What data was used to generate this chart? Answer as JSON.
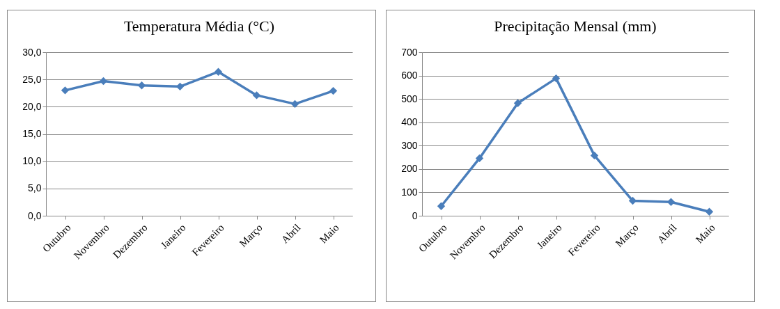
{
  "chart_data": [
    {
      "type": "line",
      "title": "Temperatura Média (°C)",
      "categories": [
        "Outubro",
        "Novembro",
        "Dezembro",
        "Janeiro",
        "Fevereiro",
        "Março",
        "Abril",
        "Maio"
      ],
      "series": [
        {
          "color": "#4a7ebb",
          "values": [
            23.0,
            24.7,
            23.9,
            23.7,
            26.4,
            22.1,
            20.5,
            22.9
          ]
        }
      ],
      "ylim": [
        0,
        30
      ],
      "yticks": [
        {
          "value": 0,
          "label": "0,0"
        },
        {
          "value": 5,
          "label": "5,0"
        },
        {
          "value": 10,
          "label": "10,0"
        },
        {
          "value": 15,
          "label": "15,0"
        },
        {
          "value": 20,
          "label": "20,0"
        },
        {
          "value": 25,
          "label": "25,0"
        },
        {
          "value": 30,
          "label": "30,0"
        }
      ],
      "grid": "y",
      "marker": "diamond",
      "line_style": "solid"
    },
    {
      "type": "line",
      "title": "Precipitação Mensal (mm)",
      "categories": [
        "Outubro",
        "Novembro",
        "Dezembro",
        "Janeiro",
        "Fevereiro",
        "Março",
        "Abril",
        "Maio"
      ],
      "series": [
        {
          "color": "#4a7ebb",
          "values": [
            41,
            246,
            482,
            588,
            258,
            64,
            59,
            17
          ]
        }
      ],
      "ylim": [
        0,
        700
      ],
      "yticks": [
        0,
        100,
        200,
        300,
        400,
        500,
        600,
        700
      ],
      "grid": "y",
      "marker": "diamond",
      "line_style": "solid"
    }
  ]
}
